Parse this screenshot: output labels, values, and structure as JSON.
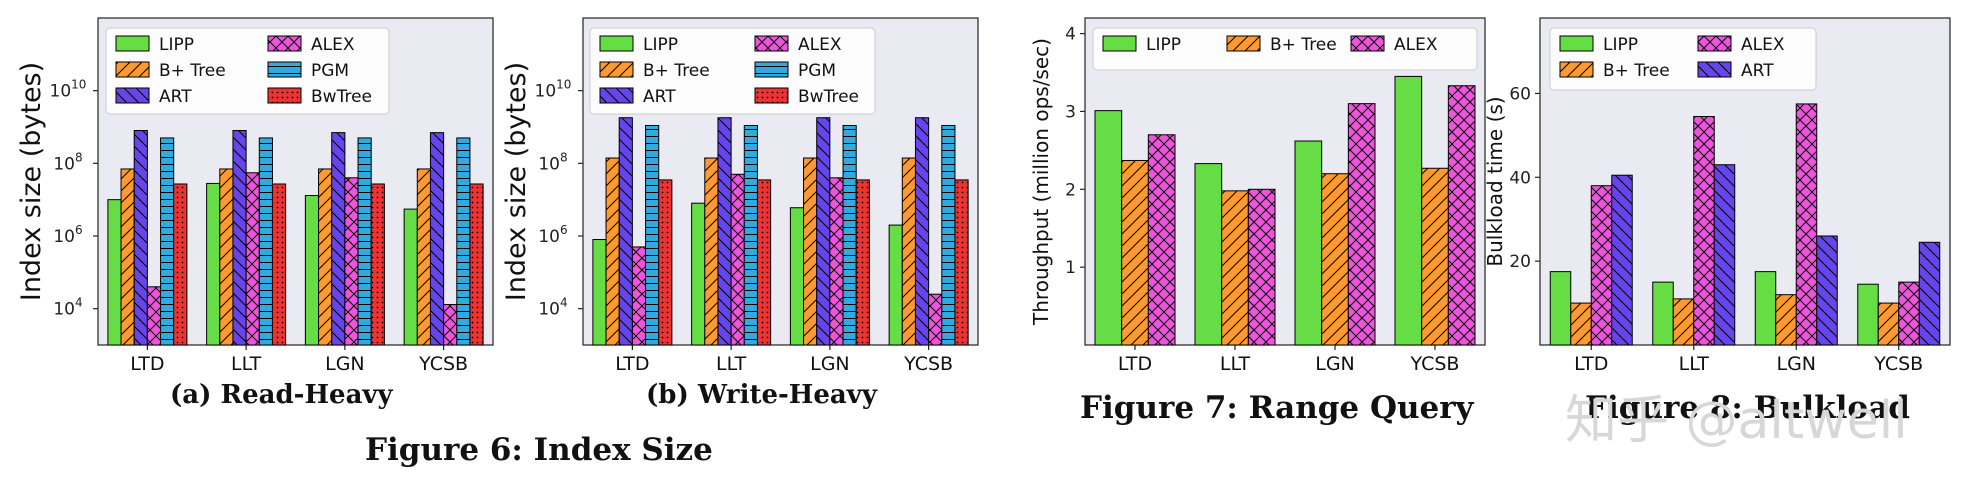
{
  "captions": {
    "read_heavy": "(a) Read-Heavy",
    "write_heavy": "(b) Write-Heavy",
    "fig6": "Figure 6: Index Size",
    "fig7": "Figure 7: Range Query",
    "fig8": "Figure 8: Bulkload"
  },
  "watermark": "知乎 @altwell",
  "colors": {
    "LIPP": "#66dd44",
    "B+ Tree": "#ff9933",
    "ART": "#6644ee",
    "ALEX": "#ee55dd",
    "PGM": "#33aadd",
    "BwTree": "#ee3333",
    "plot_bg": "#eaeaf2"
  },
  "chart_data": [
    {
      "type": "bar",
      "title": "(a) Read-Heavy",
      "ylabel": "Index size (bytes)",
      "xlabel": "",
      "yscale": "log",
      "ylim": [
        1000,
        1000000000000
      ],
      "yticks": [
        4,
        6,
        8,
        10
      ],
      "ytick_labels": [
        "10^4",
        "10^6",
        "10^8",
        "10^10"
      ],
      "categories": [
        "LTD",
        "LLT",
        "LGN",
        "YCSB"
      ],
      "legend": [
        "LIPP",
        "ALEX",
        "B+ Tree",
        "PGM",
        "ART",
        "BwTree"
      ],
      "series": [
        {
          "name": "LIPP",
          "values": [
            10000000,
            28000000,
            13000000,
            5500000
          ]
        },
        {
          "name": "B+ Tree",
          "values": [
            70000000,
            70000000,
            70000000,
            70000000
          ]
        },
        {
          "name": "ART",
          "values": [
            800000000,
            800000000,
            700000000,
            700000000
          ]
        },
        {
          "name": "ALEX",
          "values": [
            40000,
            55000000,
            40000000,
            13000
          ]
        },
        {
          "name": "PGM",
          "values": [
            500000000,
            500000000,
            500000000,
            500000000
          ]
        },
        {
          "name": "BwTree",
          "values": [
            27000000,
            27000000,
            27000000,
            27000000
          ]
        }
      ]
    },
    {
      "type": "bar",
      "title": "(b) Write-Heavy",
      "ylabel": "Index size (bytes)",
      "xlabel": "",
      "yscale": "log",
      "ylim": [
        1000,
        1000000000000
      ],
      "yticks": [
        4,
        6,
        8,
        10
      ],
      "ytick_labels": [
        "10^4",
        "10^6",
        "10^8",
        "10^10"
      ],
      "categories": [
        "LTD",
        "LLT",
        "LGN",
        "YCSB"
      ],
      "legend": [
        "LIPP",
        "ALEX",
        "B+ Tree",
        "PGM",
        "ART",
        "BwTree"
      ],
      "series": [
        {
          "name": "LIPP",
          "values": [
            800000,
            8000000,
            6000000,
            2000000
          ]
        },
        {
          "name": "B+ Tree",
          "values": [
            140000000,
            140000000,
            140000000,
            140000000
          ]
        },
        {
          "name": "ART",
          "values": [
            1800000000,
            1800000000,
            1800000000,
            1800000000
          ]
        },
        {
          "name": "ALEX",
          "values": [
            500000,
            50000000,
            40000000,
            25000
          ]
        },
        {
          "name": "PGM",
          "values": [
            1100000000,
            1100000000,
            1100000000,
            1100000000
          ]
        },
        {
          "name": "BwTree",
          "values": [
            35000000,
            35000000,
            35000000,
            35000000
          ]
        }
      ]
    },
    {
      "type": "bar",
      "title": "Figure 7: Range Query",
      "ylabel": "Throughput (million ops/sec)",
      "xlabel": "",
      "yscale": "linear",
      "ylim": [
        0,
        4.2
      ],
      "yticks": [
        1,
        2,
        3,
        4
      ],
      "ytick_labels": [
        "1",
        "2",
        "3",
        "4"
      ],
      "categories": [
        "LTD",
        "LLT",
        "LGN",
        "YCSB"
      ],
      "legend": [
        "LIPP",
        "B+ Tree",
        "ALEX"
      ],
      "series": [
        {
          "name": "LIPP",
          "values": [
            3.01,
            2.33,
            2.62,
            3.45
          ]
        },
        {
          "name": "B+ Tree",
          "values": [
            2.37,
            1.98,
            2.2,
            2.27
          ]
        },
        {
          "name": "ALEX",
          "values": [
            2.7,
            2.0,
            3.1,
            3.33
          ]
        }
      ]
    },
    {
      "type": "bar",
      "title": "Figure 8: Bulkload",
      "ylabel": "Bulkload time (s)",
      "xlabel": "",
      "yscale": "linear",
      "ylim": [
        0,
        78
      ],
      "yticks": [
        20,
        40,
        60
      ],
      "ytick_labels": [
        "20",
        "40",
        "60"
      ],
      "categories": [
        "LTD",
        "LLT",
        "LGN",
        "YCSB"
      ],
      "legend": [
        "LIPP",
        "ALEX",
        "B+ Tree",
        "ART"
      ],
      "series": [
        {
          "name": "LIPP",
          "values": [
            17.5,
            15,
            17.5,
            14.5
          ]
        },
        {
          "name": "B+ Tree",
          "values": [
            10,
            11,
            12,
            10
          ]
        },
        {
          "name": "ALEX",
          "values": [
            38,
            54.5,
            57.5,
            15
          ]
        },
        {
          "name": "ART",
          "values": [
            40.5,
            43,
            26,
            24.5
          ]
        }
      ]
    }
  ]
}
